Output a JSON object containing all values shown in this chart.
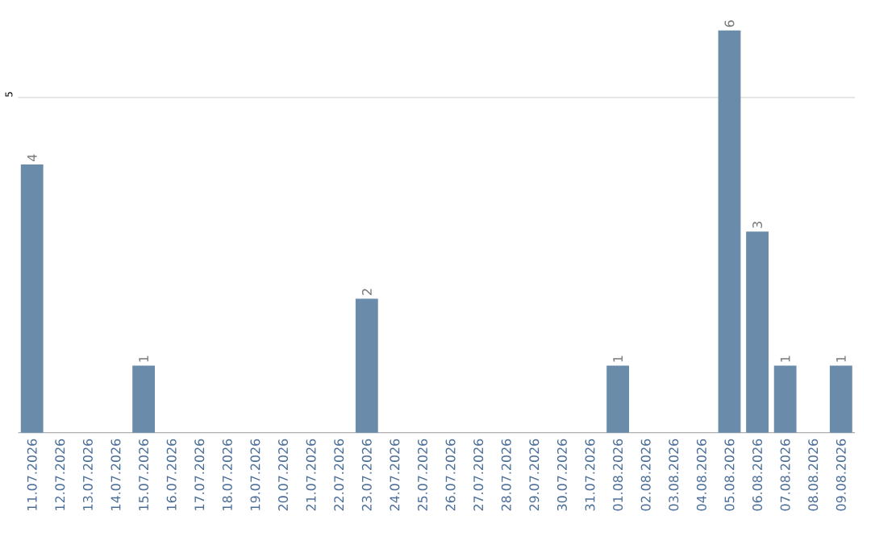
{
  "chart_data": {
    "type": "bar",
    "categories": [
      "11.07.2026",
      "12.07.2026",
      "13.07.2026",
      "14.07.2026",
      "15.07.2026",
      "16.07.2026",
      "17.07.2026",
      "18.07.2026",
      "19.07.2026",
      "20.07.2026",
      "21.07.2026",
      "22.07.2026",
      "23.07.2026",
      "24.07.2026",
      "25.07.2026",
      "26.07.2026",
      "27.07.2026",
      "28.07.2026",
      "29.07.2026",
      "30.07.2026",
      "31.07.2026",
      "01.08.2026",
      "02.08.2026",
      "03.08.2026",
      "04.08.2026",
      "05.08.2026",
      "06.08.2026",
      "07.08.2026",
      "08.08.2026",
      "09.08.2026"
    ],
    "values": [
      4,
      0,
      0,
      0,
      1,
      0,
      0,
      0,
      0,
      0,
      0,
      0,
      2,
      0,
      0,
      0,
      0,
      0,
      0,
      0,
      0,
      1,
      0,
      0,
      0,
      6,
      3,
      1,
      0,
      1
    ],
    "value_labels": [
      "4",
      null,
      null,
      null,
      "1",
      null,
      null,
      null,
      null,
      null,
      null,
      null,
      "2",
      null,
      null,
      null,
      null,
      null,
      null,
      null,
      null,
      "1",
      null,
      null,
      null,
      "6",
      "3",
      "1",
      null,
      "1"
    ],
    "color": "#6b8bab",
    "ylim": [
      0,
      6
    ],
    "yticks": [
      5
    ],
    "grid": "y"
  }
}
